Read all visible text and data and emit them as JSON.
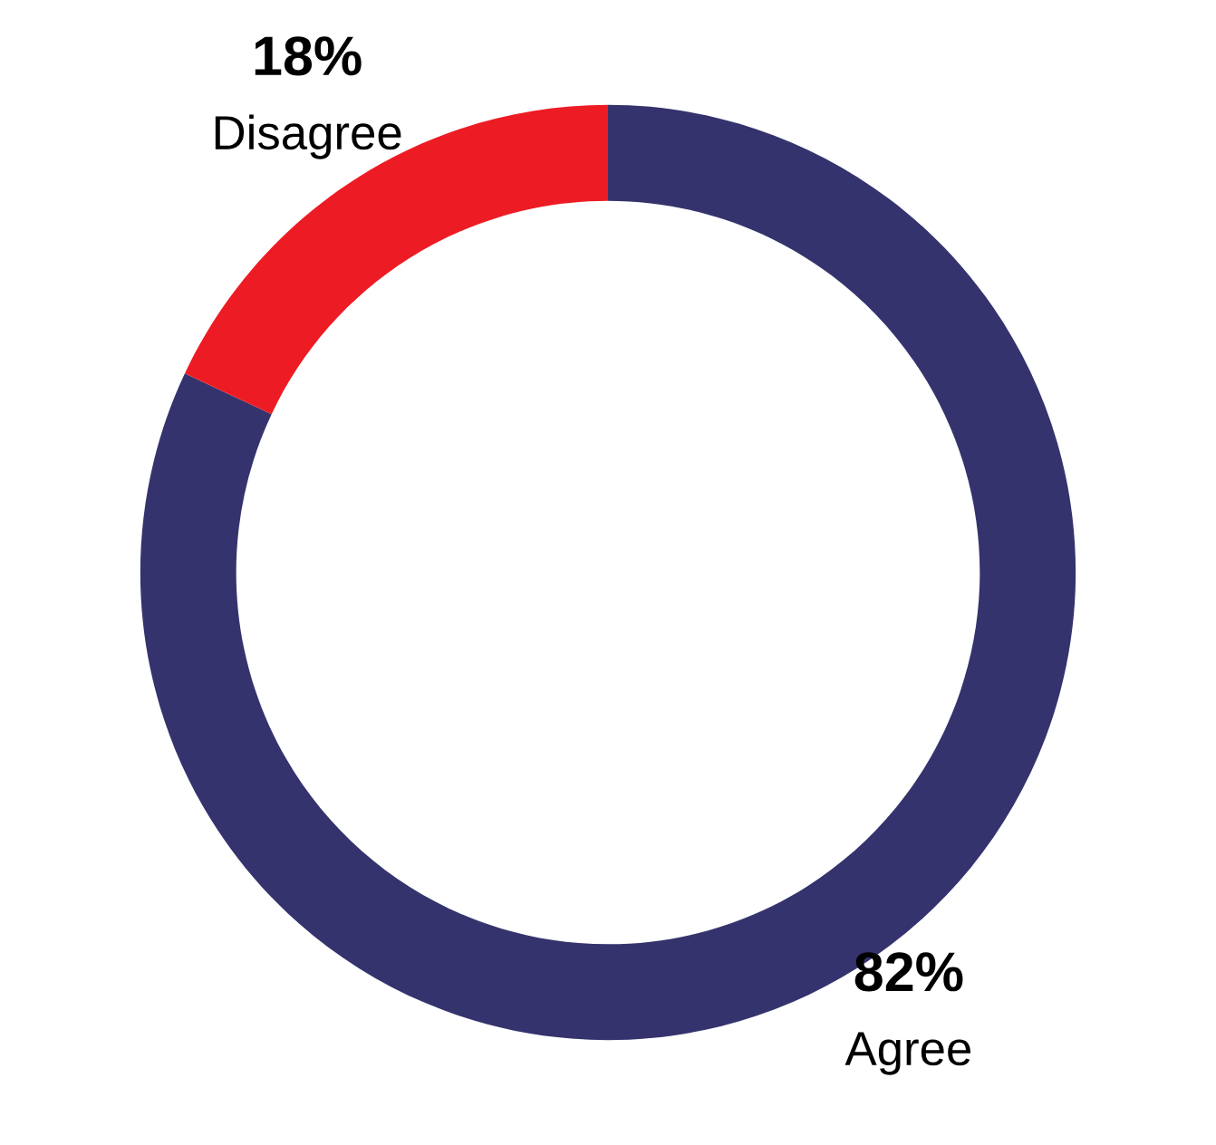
{
  "chart_data": {
    "type": "donut",
    "categories": [
      "Agree",
      "Disagree"
    ],
    "values": [
      82,
      18
    ],
    "colors": [
      "#35336d",
      "#ed1c24"
    ],
    "value_labels": [
      "82%",
      "18%"
    ]
  }
}
